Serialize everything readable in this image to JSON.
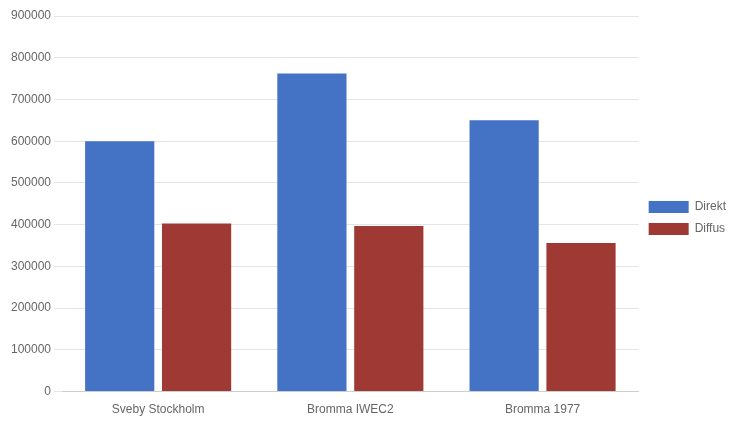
{
  "chart_data": {
    "type": "bar",
    "categories": [
      "Sveby Stockholm",
      "Bromma IWEC2",
      "Bromma 1977"
    ],
    "series": [
      {
        "name": "Direkt",
        "color": "#4472C4",
        "values": [
          600000,
          762000,
          650000
        ]
      },
      {
        "name": "Diffus",
        "color": "#9E3A33",
        "values": [
          403000,
          397000,
          356000
        ]
      }
    ],
    "ylim": [
      0,
      900000
    ],
    "yticks": [
      0,
      100000,
      200000,
      300000,
      400000,
      500000,
      600000,
      700000,
      800000,
      900000
    ],
    "grid": true,
    "legend": "right"
  }
}
